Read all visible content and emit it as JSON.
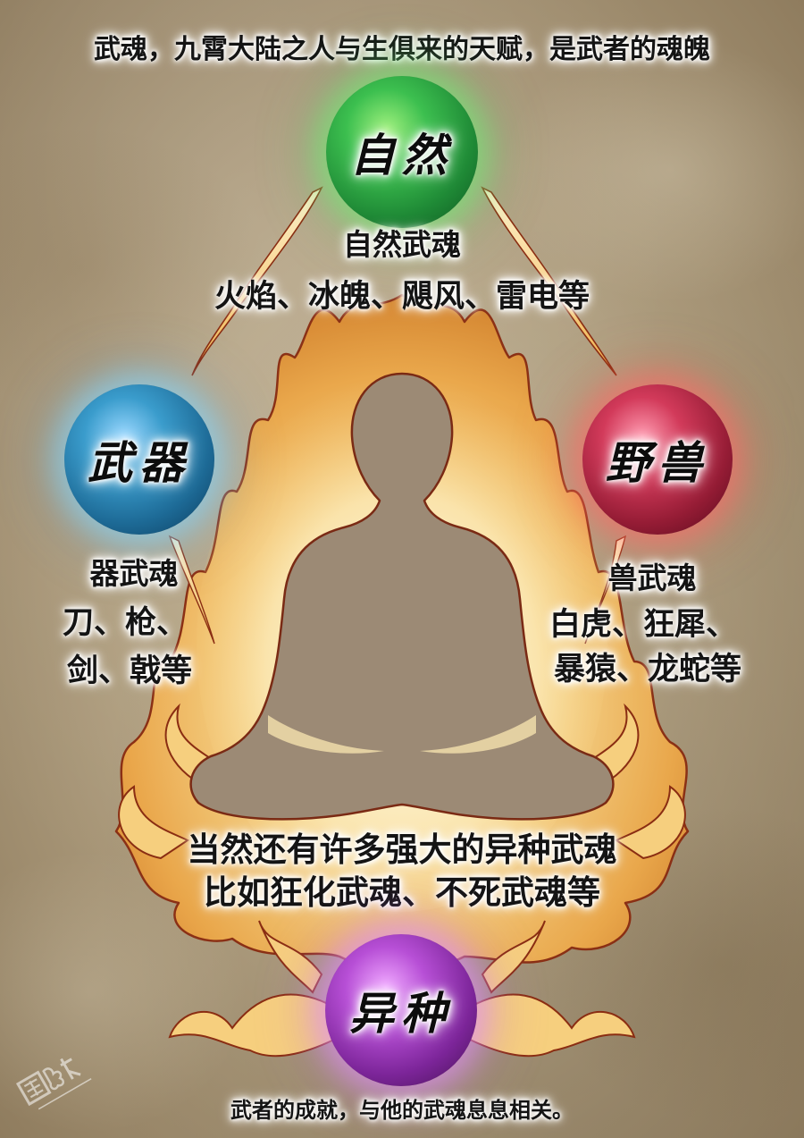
{
  "headline": "武魂，九霄大陆之人与生俱来的天赋，是武者的魂魄",
  "orbs": {
    "nature": {
      "label": "自然",
      "color": "#2faa4a",
      "desc_title": "自然武魂",
      "desc_items": "火焰、冰魄、飓风、雷电等"
    },
    "weapon": {
      "label": "武器",
      "color": "#2f8fb8",
      "desc_title": "器武魂",
      "desc_line1": "刀、枪、",
      "desc_line2": "剑、戟等"
    },
    "beast": {
      "label": "野兽",
      "color": "#b8213e",
      "desc_title": "兽武魂",
      "desc_line1": "白虎、狂犀、",
      "desc_line2": "暴猿、龙蛇等"
    },
    "variant": {
      "label": "异种",
      "color": "#9c34b8",
      "desc_line1": "当然还有许多强大的异种武魂",
      "desc_line2": "比如狂化武魂、不死武魂等"
    }
  },
  "footer": "武者的成就，与他的武魂息息相关。",
  "colors": {
    "parchment": "#b3a283",
    "flame": "#f2b64c",
    "flame_outline": "#8a2d12",
    "silhouette": "#9c8a75"
  },
  "icons": {
    "figure": "meditating-figure-icon",
    "flames": "flame-aura-icon"
  }
}
